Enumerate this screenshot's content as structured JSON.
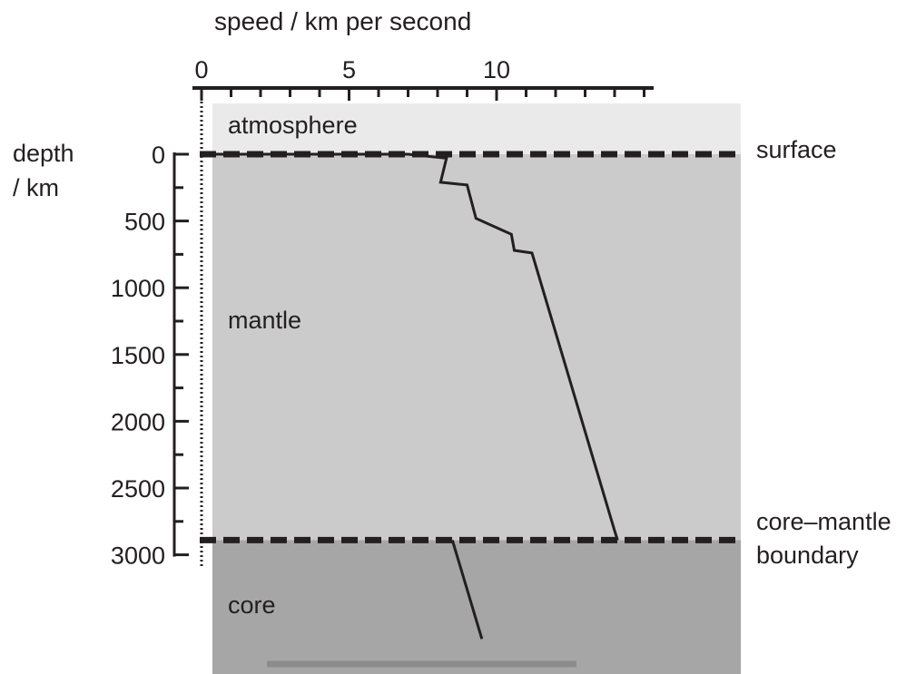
{
  "chart_data": {
    "type": "line",
    "x_axis": {
      "label": "speed / km per second",
      "range": [
        0,
        15
      ],
      "ticks": [
        0,
        5,
        10
      ],
      "tick_labels": [
        "0",
        "5",
        "10"
      ],
      "minor_step": 1,
      "position": "top"
    },
    "y_axis": {
      "label_line1": "depth",
      "label_line2": "/ km",
      "range": [
        -380,
        3900
      ],
      "ticks": [
        0,
        500,
        1000,
        1500,
        2000,
        2500,
        3000
      ],
      "tick_labels": [
        "0",
        "500",
        "1000",
        "1500",
        "2000",
        "2500",
        "3000"
      ],
      "minor_step": 250,
      "inverted": true
    },
    "regions": [
      {
        "name": "atmosphere",
        "from_depth": -380,
        "to_depth": 0,
        "color": "#eaeaea"
      },
      {
        "name": "mantle",
        "from_depth": 0,
        "to_depth": 2890,
        "color": "#cbcbcb"
      },
      {
        "name": "core",
        "from_depth": 2890,
        "to_depth": 3900,
        "color": "#a6a6a6"
      }
    ],
    "boundaries": [
      {
        "label": "surface",
        "depth": 0
      },
      {
        "label_line1": "core–mantle",
        "label_line2": "boundary",
        "depth": 2890
      }
    ],
    "series": [
      {
        "segments": [
          [
            {
              "x": 0,
              "y": 0
            },
            {
              "x": 7.0,
              "y": 0
            },
            {
              "x": 8.3,
              "y": 30
            },
            {
              "x": 8.1,
              "y": 210
            },
            {
              "x": 9.0,
              "y": 230
            },
            {
              "x": 9.3,
              "y": 480
            },
            {
              "x": 10.5,
              "y": 600
            },
            {
              "x": 10.6,
              "y": 720
            },
            {
              "x": 11.2,
              "y": 740
            },
            {
              "x": 14.0,
              "y": 2820
            },
            {
              "x": 14.1,
              "y": 2890
            }
          ],
          [
            {
              "x": 8.5,
              "y": 2890
            },
            {
              "x": 9.5,
              "y": 3630
            }
          ]
        ],
        "color": "#231f20"
      }
    ],
    "grid": false,
    "legend": "none"
  }
}
